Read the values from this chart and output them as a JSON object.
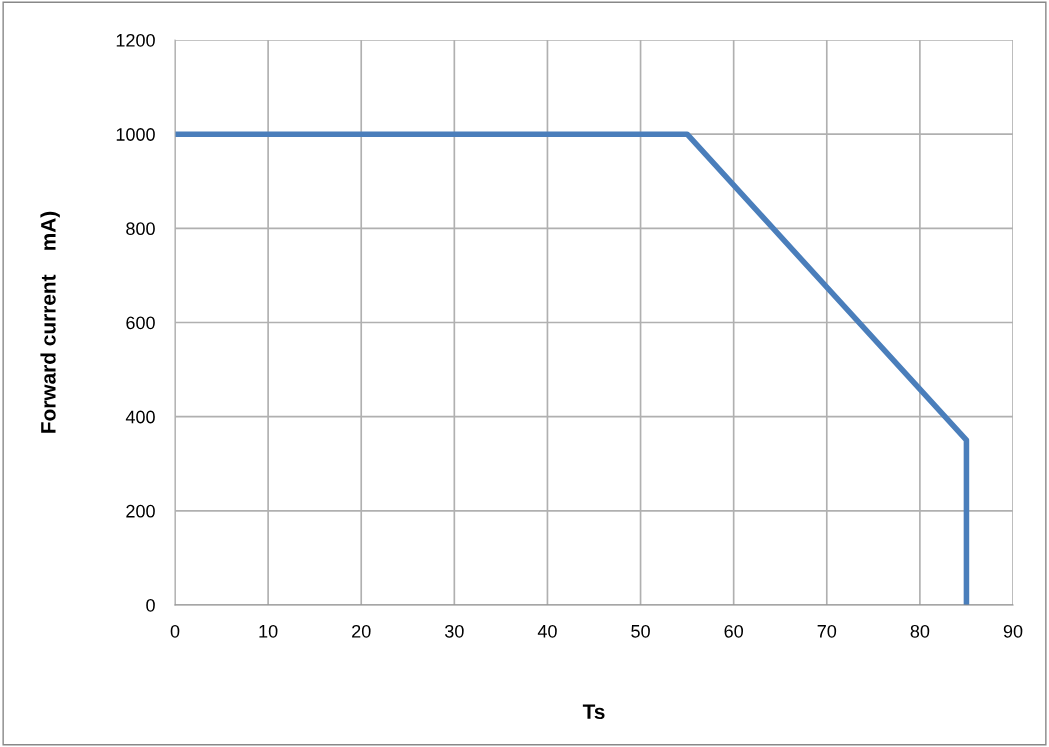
{
  "chart_data": {
    "type": "line",
    "xlabel": "Ts",
    "ylabel": "Forward current    mA)",
    "x": [
      0,
      55,
      85,
      85
    ],
    "series": [
      {
        "color": "#4a7ebb",
        "values": [
          1000,
          1000,
          350,
          0
        ]
      }
    ],
    "xlim": [
      0,
      90
    ],
    "xticks": [
      0,
      10,
      20,
      30,
      40,
      50,
      60,
      70,
      80,
      90
    ],
    "ylim": [
      0,
      1200
    ],
    "yticks": [
      0,
      200,
      400,
      600,
      800,
      1000,
      1200
    ],
    "grid": true,
    "marker": "none",
    "line_style": "solid"
  }
}
